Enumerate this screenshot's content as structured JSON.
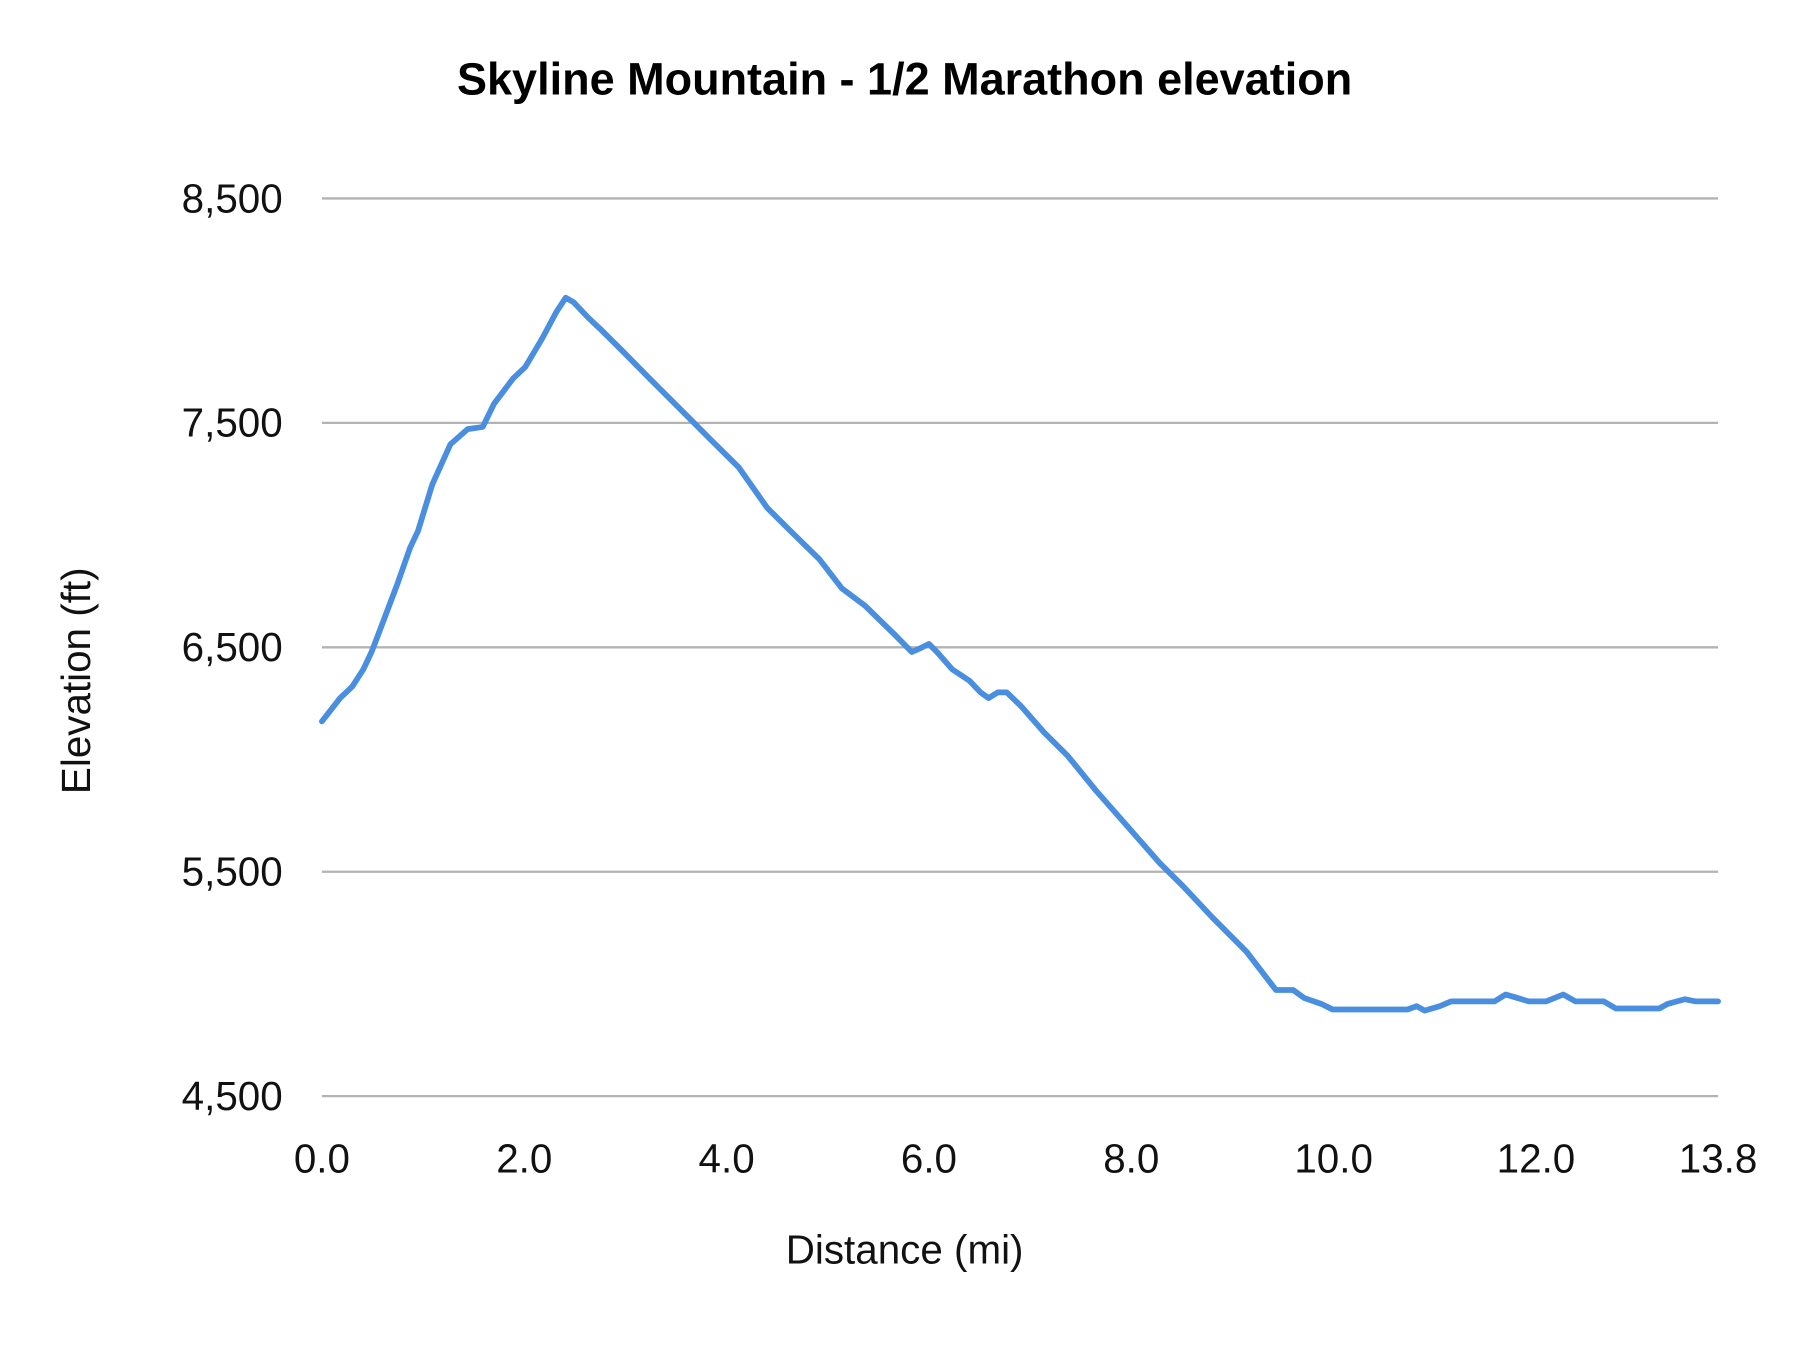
{
  "chart_data": {
    "type": "line",
    "title": "Skyline Mountain - 1/2 Marathon elevation",
    "xlabel": "Distance (mi)",
    "ylabel": "Elevation (ft)",
    "xlim": [
      0,
      13.8
    ],
    "ylim": [
      4500,
      8500
    ],
    "xticks": [
      "0.0",
      "2.0",
      "4.0",
      "6.0",
      "8.0",
      "10.0",
      "12.0",
      "13.8"
    ],
    "xtick_values": [
      0,
      2,
      4,
      6,
      8,
      10,
      12,
      13.8
    ],
    "yticks": [
      "8,500",
      "7,500",
      "6,500",
      "5,500",
      "4,500"
    ],
    "ytick_values": [
      8500,
      7500,
      6500,
      5500,
      4500
    ],
    "grid": "horizontal",
    "legend": "none",
    "line_color": "#4A8EE0",
    "series": [
      {
        "x": [
          0,
          0.18,
          0.3,
          0.41,
          0.49,
          0.6,
          0.75,
          0.87,
          0.95,
          1.09,
          1.27,
          1.44,
          1.59,
          1.7,
          1.89,
          2.01,
          2.18,
          2.32,
          2.41,
          2.49,
          2.63,
          2.75,
          2.98,
          3.26,
          3.66,
          3.83,
          4.12,
          4.4,
          4.63,
          4.92,
          5.14,
          5.37,
          5.66,
          5.83,
          5.91,
          6.0,
          6.08,
          6.23,
          6.4,
          6.51,
          6.59,
          6.68,
          6.77,
          6.91,
          7.14,
          7.37,
          7.65,
          8.0,
          8.28,
          8.51,
          8.8,
          9.14,
          9.43,
          9.6,
          9.71,
          9.88,
          9.99,
          10.73,
          10.82,
          10.9,
          11.05,
          11.16,
          11.59,
          11.7,
          11.82,
          11.93,
          12.1,
          12.27,
          12.39,
          12.67,
          12.79,
          13.22,
          13.3,
          13.47,
          13.58,
          13.8
        ],
        "y": [
          6170,
          6274,
          6325,
          6402,
          6479,
          6608,
          6788,
          6942,
          7019,
          7225,
          7405,
          7472,
          7482,
          7585,
          7698,
          7749,
          7878,
          7996,
          8058,
          8037,
          7970,
          7919,
          7816,
          7688,
          7508,
          7431,
          7302,
          7122,
          7019,
          6891,
          6762,
          6685,
          6557,
          6479,
          6495,
          6515,
          6479,
          6402,
          6351,
          6299,
          6274,
          6299,
          6299,
          6238,
          6120,
          6017,
          5862,
          5683,
          5539,
          5436,
          5297,
          5143,
          4973,
          4973,
          4937,
          4911,
          4886,
          4886,
          4901,
          4881,
          4901,
          4922,
          4922,
          4953,
          4937,
          4922,
          4922,
          4953,
          4922,
          4922,
          4891,
          4891,
          4911,
          4932,
          4922,
          4922
        ]
      }
    ]
  }
}
